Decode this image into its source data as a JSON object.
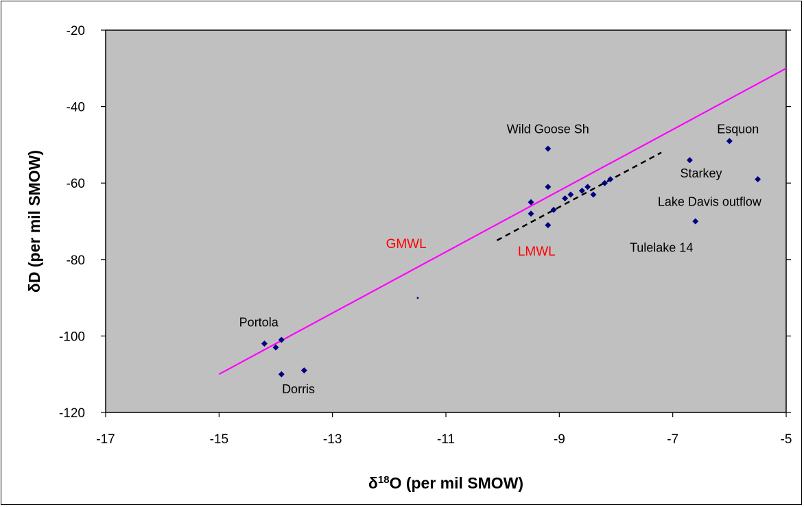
{
  "chart_data": {
    "type": "scatter",
    "xlabel": "δ18O (per mil SMOW)",
    "xlabel_parts": {
      "prefix": "δ",
      "sup": "18",
      "rest": "O (per mil SMOW)"
    },
    "ylabel": "δD (per mil SMOW)",
    "xlim": [
      -17,
      -5
    ],
    "ylim": [
      -120,
      -20
    ],
    "x_ticks": [
      -17,
      -15,
      -13,
      -11,
      -9,
      -7,
      -5
    ],
    "y_ticks": [
      -120,
      -100,
      -80,
      -60,
      -40,
      -20
    ],
    "grid": false,
    "plot_background": "#c0c0c0",
    "point_color": "#000080",
    "series": [
      {
        "points": [
          [
            -14.2,
            -102
          ],
          [
            -14.0,
            -103
          ],
          [
            -13.9,
            -101
          ],
          [
            -13.9,
            -110
          ],
          [
            -13.5,
            -109
          ],
          [
            -9.5,
            -65
          ],
          [
            -9.5,
            -68
          ],
          [
            -9.2,
            -51
          ],
          [
            -9.2,
            -61
          ],
          [
            -9.2,
            -71
          ],
          [
            -9.1,
            -67
          ],
          [
            -8.9,
            -64
          ],
          [
            -8.8,
            -63
          ],
          [
            -8.6,
            -62
          ],
          [
            -8.5,
            -61
          ],
          [
            -8.4,
            -63
          ],
          [
            -8.2,
            -60
          ],
          [
            -8.1,
            -59
          ],
          [
            -6.7,
            -54
          ],
          [
            -6.6,
            -70
          ],
          [
            -6.0,
            -49
          ],
          [
            -5.5,
            -59
          ]
        ]
      }
    ],
    "extra_points": [
      [
        -11.5,
        -90
      ]
    ],
    "lines": [
      {
        "label": "GMWL",
        "color": "#ff00ff",
        "style": "solid",
        "from": [
          -15,
          -110
        ],
        "to": [
          -5,
          -30
        ]
      },
      {
        "label": "LMWL",
        "color": "#000000",
        "style": "dashed",
        "from": [
          -10.1,
          -75
        ],
        "to": [
          -7.2,
          -52
        ]
      }
    ],
    "line_labels": [
      {
        "text": "GMWL",
        "color": "#ff0000",
        "x": -11.7,
        "y": -77
      },
      {
        "text": "LMWL",
        "color": "#ff0000",
        "x": -9.4,
        "y": -79
      }
    ],
    "point_labels": [
      {
        "text": "Wild Goose Sh",
        "x": -9.2,
        "y": -47
      },
      {
        "text": "Esquon",
        "x": -5.85,
        "y": -47
      },
      {
        "text": "Starkey",
        "x": -6.5,
        "y": -58.5
      },
      {
        "text": "Lake Davis outflow",
        "x": -6.35,
        "y": -66
      },
      {
        "text": "Tulelake 14",
        "x": -7.2,
        "y": -78
      },
      {
        "text": "Portola",
        "x": -14.3,
        "y": -97.5
      },
      {
        "text": "Dorris",
        "x": -13.6,
        "y": -115
      }
    ]
  }
}
